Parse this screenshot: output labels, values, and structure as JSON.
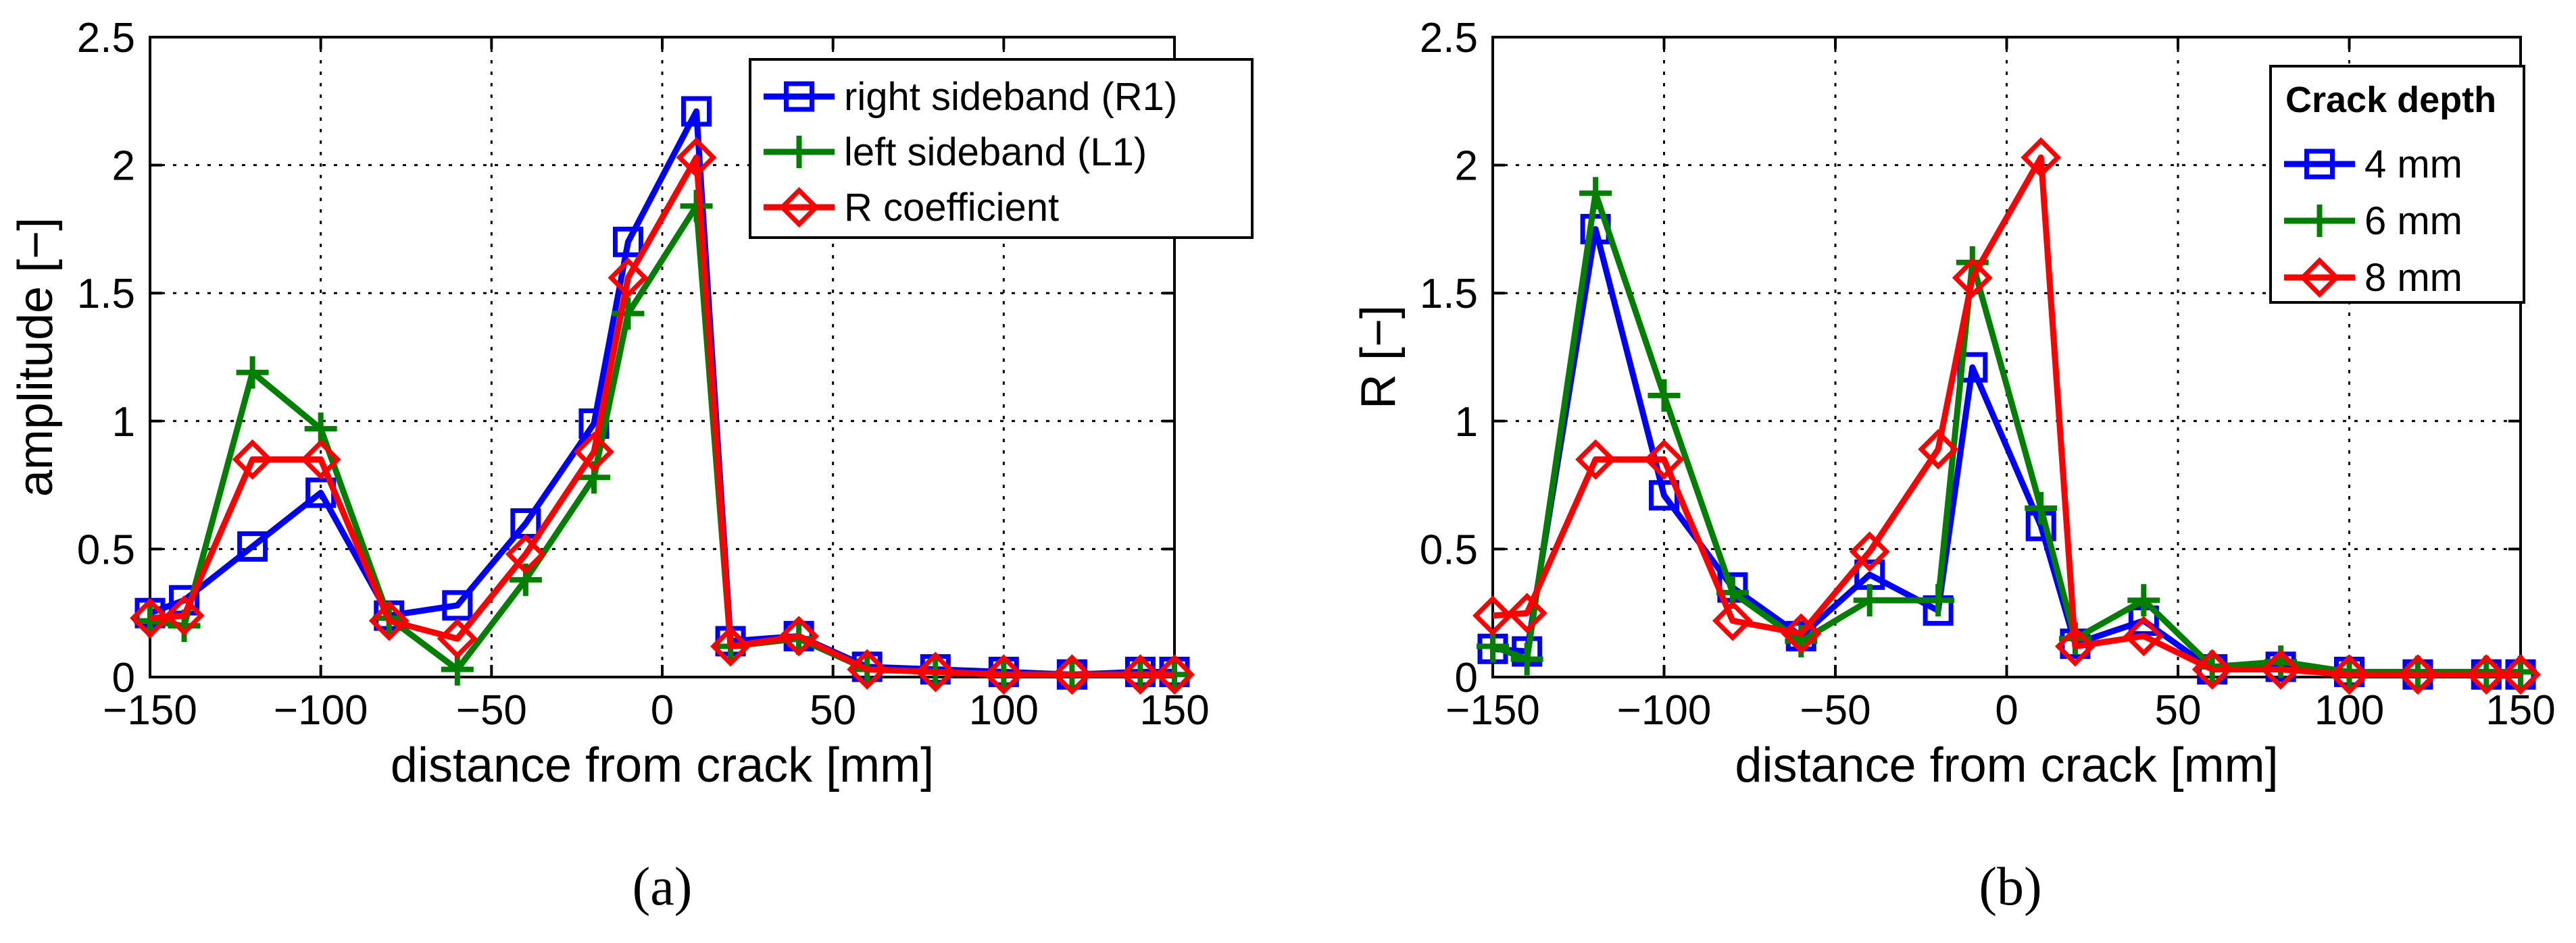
{
  "chart_data": [
    {
      "type": "line",
      "caption": "(a)",
      "title": "",
      "xlabel": "distance from crack [mm]",
      "ylabel": "amplitude [−]",
      "xlim": [
        -150,
        150
      ],
      "ylim": [
        0,
        2.5
      ],
      "xticks": [
        -150,
        -100,
        -50,
        0,
        50,
        100,
        150
      ],
      "xtick_labels": [
        "−150",
        "−100",
        "−50",
        "0",
        "50",
        "100",
        "150"
      ],
      "yticks": [
        0,
        0.5,
        1,
        1.5,
        2,
        2.5
      ],
      "ytick_labels": [
        "0",
        "0.5",
        "1",
        "1.5",
        "2",
        "2.5"
      ],
      "grid": true,
      "legend_title": "",
      "legend_position": "top-right",
      "series": [
        {
          "name": "right sideband (R1)",
          "color": "#0000ff",
          "marker": "square",
          "x": [
            -150,
            -140,
            -120,
            -100,
            -80,
            -60,
            -40,
            -20,
            -10,
            10,
            20,
            40,
            60,
            80,
            100,
            120,
            140,
            150
          ],
          "y": [
            0.25,
            0.3,
            0.51,
            0.72,
            0.24,
            0.28,
            0.6,
            0.99,
            1.7,
            2.21,
            0.14,
            0.16,
            0.04,
            0.03,
            0.02,
            0.01,
            0.02,
            0.02
          ]
        },
        {
          "name": "left sideband (L1)",
          "color": "#007f00",
          "marker": "plus",
          "x": [
            -150,
            -140,
            -120,
            -100,
            -80,
            -60,
            -40,
            -20,
            -10,
            10,
            20,
            40,
            60,
            80,
            100,
            120,
            140,
            150
          ],
          "y": [
            0.22,
            0.2,
            1.19,
            0.97,
            0.23,
            0.03,
            0.38,
            0.78,
            1.42,
            1.84,
            0.12,
            0.15,
            0.03,
            0.02,
            0.01,
            0.01,
            0.01,
            0.01
          ]
        },
        {
          "name": "R coefficient",
          "color": "#ff0000",
          "marker": "diamond",
          "x": [
            -150,
            -140,
            -120,
            -100,
            -80,
            -60,
            -40,
            -20,
            -10,
            10,
            20,
            40,
            60,
            80,
            100,
            120,
            140,
            150
          ],
          "y": [
            0.23,
            0.24,
            0.85,
            0.85,
            0.22,
            0.15,
            0.48,
            0.88,
            1.56,
            2.03,
            0.12,
            0.16,
            0.03,
            0.02,
            0.01,
            0.01,
            0.01,
            0.01
          ]
        }
      ]
    },
    {
      "type": "line",
      "caption": "(b)",
      "title": "",
      "xlabel": "distance from crack [mm]",
      "ylabel": "R [−]",
      "xlim": [
        -150,
        150
      ],
      "ylim": [
        0,
        2.5
      ],
      "xticks": [
        -150,
        -100,
        -50,
        0,
        50,
        100,
        150
      ],
      "xtick_labels": [
        "−150",
        "−100",
        "−50",
        "0",
        "50",
        "100",
        "150"
      ],
      "yticks": [
        0,
        0.5,
        1,
        1.5,
        2,
        2.5
      ],
      "ytick_labels": [
        "0",
        "0.5",
        "1",
        "1.5",
        "2",
        "2.5"
      ],
      "grid": true,
      "legend_title": "Crack depth",
      "legend_position": "top-right",
      "series": [
        {
          "name": "4 mm",
          "color": "#0000ff",
          "marker": "square",
          "x": [
            -150,
            -140,
            -120,
            -100,
            -80,
            -60,
            -40,
            -20,
            -10,
            10,
            20,
            40,
            60,
            80,
            100,
            120,
            140,
            150
          ],
          "y": [
            0.11,
            0.1,
            1.75,
            0.71,
            0.35,
            0.16,
            0.4,
            0.26,
            1.21,
            0.59,
            0.13,
            0.22,
            0.03,
            0.04,
            0.02,
            0.01,
            0.01,
            0.01
          ]
        },
        {
          "name": "6 mm",
          "color": "#007f00",
          "marker": "plus",
          "x": [
            -150,
            -140,
            -120,
            -100,
            -80,
            -60,
            -40,
            -20,
            -10,
            10,
            20,
            40,
            60,
            80,
            100,
            120,
            140,
            150
          ],
          "y": [
            0.12,
            0.07,
            1.89,
            1.1,
            0.33,
            0.14,
            0.3,
            0.3,
            1.62,
            0.66,
            0.15,
            0.3,
            0.04,
            0.06,
            0.02,
            0.02,
            0.02,
            0.02
          ]
        },
        {
          "name": "8 mm",
          "color": "#ff0000",
          "marker": "diamond",
          "x": [
            -150,
            -140,
            -120,
            -100,
            -80,
            -60,
            -40,
            -20,
            -10,
            10,
            20,
            40,
            60,
            80,
            100,
            120,
            140,
            150
          ],
          "y": [
            0.24,
            0.25,
            0.85,
            0.85,
            0.22,
            0.17,
            0.49,
            0.89,
            1.56,
            2.03,
            0.12,
            0.16,
            0.03,
            0.03,
            0.01,
            0.01,
            0.01,
            0.01
          ]
        }
      ]
    }
  ]
}
